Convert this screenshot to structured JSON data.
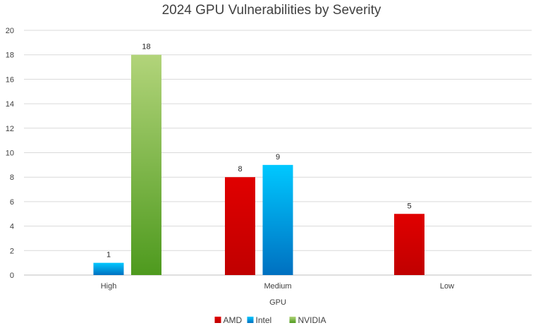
{
  "chart_data": {
    "type": "bar",
    "title": "2024 GPU Vulnerabilities by Severity",
    "xlabel": "GPU",
    "ylabel": "",
    "categories": [
      "High",
      "Medium",
      "Low"
    ],
    "series": [
      {
        "name": "AMD",
        "values": [
          null,
          8,
          5
        ],
        "color": "#e00000",
        "color_dark": "#c00000"
      },
      {
        "name": "Intel",
        "values": [
          1,
          9,
          null
        ],
        "color": "#00c8ff",
        "color_dark": "#0070c0"
      },
      {
        "name": "NVIDIA",
        "values": [
          18,
          null,
          null
        ],
        "color": "#b2d47a",
        "color_dark": "#4e9a1e"
      }
    ],
    "ylim": [
      0,
      20
    ],
    "yticks": [
      0,
      2,
      4,
      6,
      8,
      10,
      12,
      14,
      16,
      18,
      20
    ],
    "grid": true,
    "legend_position": "bottom"
  }
}
